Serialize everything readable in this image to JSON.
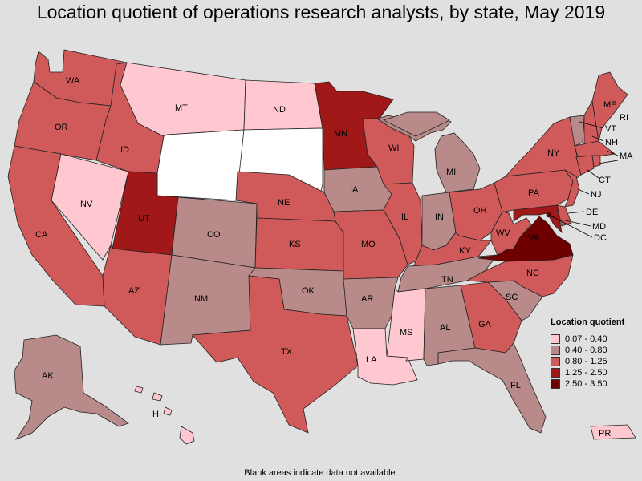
{
  "title": "Location quotient of operations research analysts, by state, May 2019",
  "footnote": "Blank areas indicate data not available.",
  "colors": {
    "b0": "#ffc8d0",
    "b1": "#b88a8a",
    "b2": "#d05a5a",
    "b3": "#a01818",
    "b4": "#6e0000",
    "na": "#ffffff"
  },
  "legend": {
    "title": "Location quotient",
    "items": [
      {
        "label": "0.07 - 0.40",
        "color": "#ffc8d0"
      },
      {
        "label": "0.40 - 0.80",
        "color": "#b88a8a"
      },
      {
        "label": "0.80 - 1.25",
        "color": "#d05a5a"
      },
      {
        "label": "1.25 - 2.50",
        "color": "#a01818"
      },
      {
        "label": "2.50 - 3.50",
        "color": "#6e0000"
      }
    ]
  },
  "states": {
    "WA": "0.80 - 1.25",
    "OR": "0.80 - 1.25",
    "CA": "0.80 - 1.25",
    "NV": "0.07 - 0.40",
    "ID": "0.80 - 1.25",
    "MT": "0.07 - 0.40",
    "WY": "n/a",
    "UT": "1.25 - 2.50",
    "AZ": "0.80 - 1.25",
    "CO": "0.40 - 0.80",
    "NM": "0.40 - 0.80",
    "ND": "0.07 - 0.40",
    "SD": "n/a",
    "NE": "0.80 - 1.25",
    "KS": "0.80 - 1.25",
    "OK": "0.40 - 0.80",
    "TX": "0.80 - 1.25",
    "MN": "1.25 - 2.50",
    "IA": "0.40 - 0.80",
    "MO": "0.80 - 1.25",
    "AR": "0.40 - 0.80",
    "LA": "0.07 - 0.40",
    "WI": "0.80 - 1.25",
    "IL": "0.80 - 1.25",
    "MI": "0.40 - 0.80",
    "IN": "0.40 - 0.80",
    "OH": "0.80 - 1.25",
    "KY": "0.80 - 1.25",
    "TN": "0.40 - 0.80",
    "MS": "0.07 - 0.40",
    "AL": "0.40 - 0.80",
    "GA": "0.80 - 1.25",
    "FL": "0.40 - 0.80",
    "SC": "0.40 - 0.80",
    "NC": "0.80 - 1.25",
    "VA": "2.50 - 3.50",
    "WV": "0.80 - 1.25",
    "PA": "0.80 - 1.25",
    "NY": "0.80 - 1.25",
    "VT": "0.40 - 0.80",
    "NH": "0.80 - 1.25",
    "ME": "0.80 - 1.25",
    "MA": "0.80 - 1.25",
    "RI": "0.80 - 1.25",
    "CT": "0.80 - 1.25",
    "NJ": "0.80 - 1.25",
    "DE": "0.80 - 1.25",
    "MD": "1.25 - 2.50",
    "DC": "2.50 - 3.50",
    "AK": "0.40 - 0.80",
    "HI": "0.07 - 0.40",
    "PR": "0.07 - 0.40"
  },
  "labels": {
    "WA": "WA",
    "OR": "OR",
    "CA": "CA",
    "NV": "NV",
    "ID": "ID",
    "MT": "MT",
    "UT": "UT",
    "AZ": "AZ",
    "CO": "CO",
    "NM": "NM",
    "ND": "ND",
    "NE": "NE",
    "KS": "KS",
    "OK": "OK",
    "TX": "TX",
    "MN": "MN",
    "IA": "IA",
    "MO": "MO",
    "AR": "AR",
    "LA": "LA",
    "WI": "WI",
    "IL": "IL",
    "MI": "MI",
    "IN": "IN",
    "OH": "OH",
    "KY": "KY",
    "TN": "TN",
    "MS": "MS",
    "AL": "AL",
    "GA": "GA",
    "FL": "FL",
    "SC": "SC",
    "NC": "NC",
    "VA": "VA",
    "WV": "WV",
    "PA": "PA",
    "NY": "NY",
    "VT": "VT",
    "NH": "NH",
    "ME": "ME",
    "MA": "MA",
    "RI": "RI",
    "CT": "CT",
    "NJ": "NJ",
    "DE": "DE",
    "MD": "MD",
    "DC": "DC",
    "AK": "AK",
    "HI": "HI",
    "PR": "PR"
  }
}
